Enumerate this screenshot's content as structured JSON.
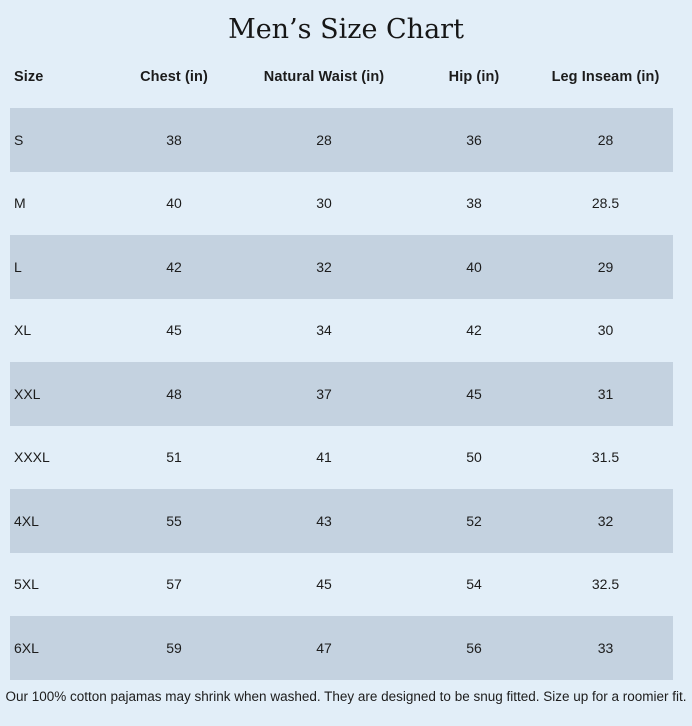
{
  "title": "Men’s Size Chart",
  "colors": {
    "background": "#e2eef8",
    "row_shaded": "#c4d2e0",
    "text": "#1c1c1c"
  },
  "footnote": "Our 100% cotton pajamas may shrink when washed. They are designed to be snug fitted. Size up for a roomier fit.",
  "chart_data": {
    "type": "table",
    "title": "Men’s Size Chart",
    "columns": [
      "Size",
      "Chest (in)",
      "Natural Waist (in)",
      "Hip (in)",
      "Leg Inseam (in)"
    ],
    "rows": [
      {
        "size": "S",
        "chest": "38",
        "waist": "28",
        "hip": "36",
        "inseam": "28"
      },
      {
        "size": "M",
        "chest": "40",
        "waist": "30",
        "hip": "38",
        "inseam": "28.5"
      },
      {
        "size": "L",
        "chest": "42",
        "waist": "32",
        "hip": "40",
        "inseam": "29"
      },
      {
        "size": "XL",
        "chest": "45",
        "waist": "34",
        "hip": "42",
        "inseam": "30"
      },
      {
        "size": "XXL",
        "chest": "48",
        "waist": "37",
        "hip": "45",
        "inseam": "31"
      },
      {
        "size": "XXXL",
        "chest": "51",
        "waist": "41",
        "hip": "50",
        "inseam": "31.5"
      },
      {
        "size": "4XL",
        "chest": "55",
        "waist": "43",
        "hip": "52",
        "inseam": "32"
      },
      {
        "size": "5XL",
        "chest": "57",
        "waist": "45",
        "hip": "54",
        "inseam": "32.5"
      },
      {
        "size": "6XL",
        "chest": "59",
        "waist": "47",
        "hip": "56",
        "inseam": "33"
      }
    ],
    "layout": {
      "shaded_rows": "odd rows (S, L, XXL, 4XL, 6XL) have blue-gray background",
      "first_column_align": "left",
      "other_columns_align": "center"
    }
  }
}
